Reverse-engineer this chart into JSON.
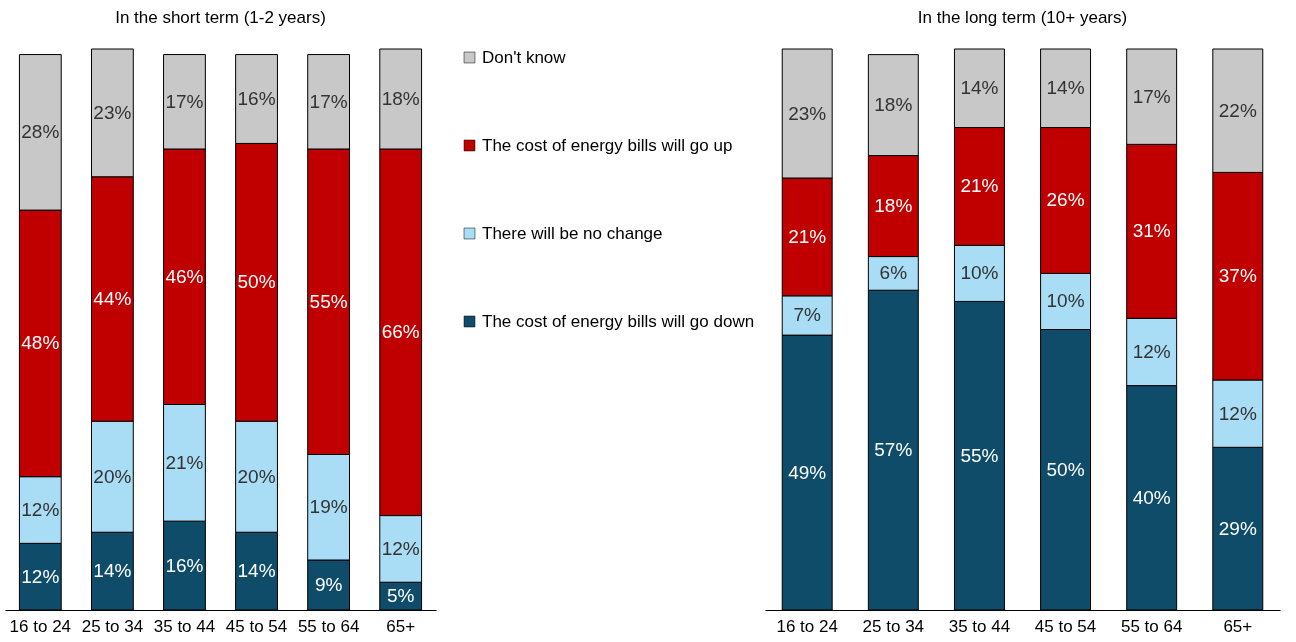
{
  "chart_data": [
    {
      "type": "bar",
      "title": "In the short term (1-2 years)",
      "stacked": true,
      "legend": "right",
      "tick_labels": "x",
      "categories": [
        "16 to 24",
        "25 to 34",
        "35 to 44",
        "45 to 54",
        "55 to 64",
        "65+"
      ],
      "series": [
        {
          "name": "The cost of energy bills will go down",
          "color": "#0f4c69",
          "values": [
            12,
            14,
            16,
            14,
            9,
            5
          ],
          "value_labels": [
            "12%",
            "14%",
            "16%",
            "14%",
            "9%",
            "5%"
          ]
        },
        {
          "name": "There will be no change",
          "color": "#a9dcf5",
          "values": [
            12,
            20,
            21,
            20,
            19,
            12
          ],
          "value_labels": [
            "12%",
            "20%",
            "21%",
            "20%",
            "19%",
            "12%"
          ]
        },
        {
          "name": "The cost of energy bills will go up",
          "color": "#c00000",
          "values": [
            48,
            44,
            46,
            50,
            55,
            66
          ],
          "value_labels": [
            "48%",
            "44%",
            "46%",
            "50%",
            "55%",
            "66%"
          ]
        },
        {
          "name": "Don't know",
          "color": "#c8c8c8",
          "values": [
            28,
            23,
            17,
            16,
            17,
            18
          ],
          "value_labels": [
            "28%",
            "23%",
            "17%",
            "16%",
            "17%",
            "18%"
          ]
        }
      ]
    },
    {
      "type": "bar",
      "title": "In the long term (10+ years)",
      "stacked": true,
      "tick_labels": "x",
      "categories": [
        "16 to 24",
        "25 to 34",
        "35 to 44",
        "45 to 54",
        "55 to 64",
        "65+"
      ],
      "series": [
        {
          "color": "#0f4c69",
          "values": [
            49,
            57,
            55,
            50,
            40,
            29
          ],
          "value_labels": [
            "49%",
            "57%",
            "55%",
            "50%",
            "40%",
            "29%"
          ]
        },
        {
          "color": "#a9dcf5",
          "values": [
            7,
            6,
            10,
            10,
            12,
            12
          ],
          "value_labels": [
            "7%",
            "6%",
            "10%",
            "10%",
            "12%",
            "12%"
          ]
        },
        {
          "color": "#c00000",
          "values": [
            21,
            18,
            21,
            26,
            31,
            37
          ],
          "value_labels": [
            "21%",
            "18%",
            "21%",
            "26%",
            "31%",
            "37%"
          ]
        },
        {
          "color": "#c8c8c8",
          "values": [
            23,
            18,
            14,
            14,
            17,
            22
          ],
          "value_labels": [
            "23%",
            "18%",
            "14%",
            "14%",
            "17%",
            "22%"
          ]
        }
      ]
    }
  ]
}
